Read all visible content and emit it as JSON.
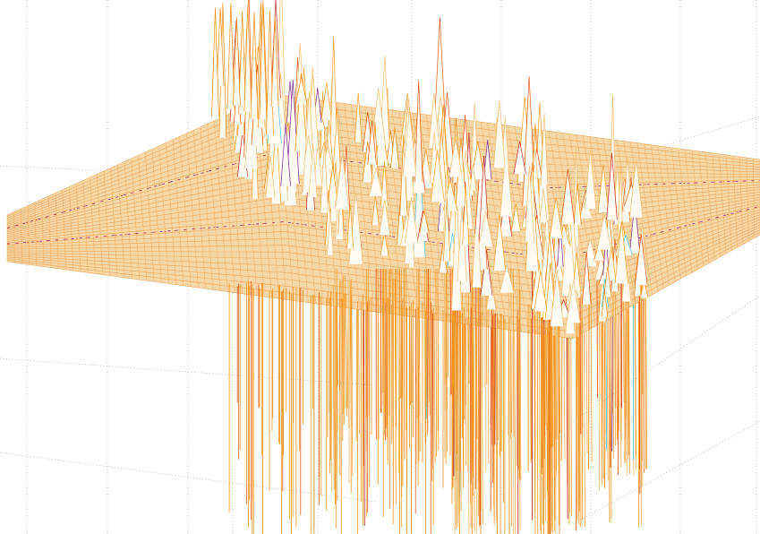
{
  "chart_data": {
    "type": "surface",
    "style": "mesh",
    "title": "",
    "xlabel": "",
    "ylabel": "",
    "zlabel": "",
    "grid": true,
    "tick_labels_visible": false,
    "legend": null,
    "colormap": [
      "#f5c27a",
      "#f7a030",
      "#f28a10",
      "#e85a1a",
      "#c0302a",
      "#7a2a8a",
      "#40c8e0"
    ],
    "baseline_color": "#f2b872",
    "peak_clusters": [
      {
        "name": "",
        "row_start": 0.06,
        "row_end": 0.22,
        "col_start": 0.18,
        "col_end": 0.3,
        "up": 95,
        "down": 0
      },
      {
        "name": "",
        "row_start": 0.18,
        "row_end": 0.45,
        "col_start": 0.28,
        "col_end": 0.42,
        "up": 70,
        "down": 140
      },
      {
        "name": "",
        "row_start": 0.35,
        "row_end": 0.6,
        "col_start": 0.4,
        "col_end": 0.55,
        "up": 80,
        "down": 180
      },
      {
        "name": "",
        "row_start": 0.55,
        "row_end": 0.86,
        "col_start": 0.52,
        "col_end": 0.66,
        "up": 60,
        "down": 150
      }
    ]
  }
}
